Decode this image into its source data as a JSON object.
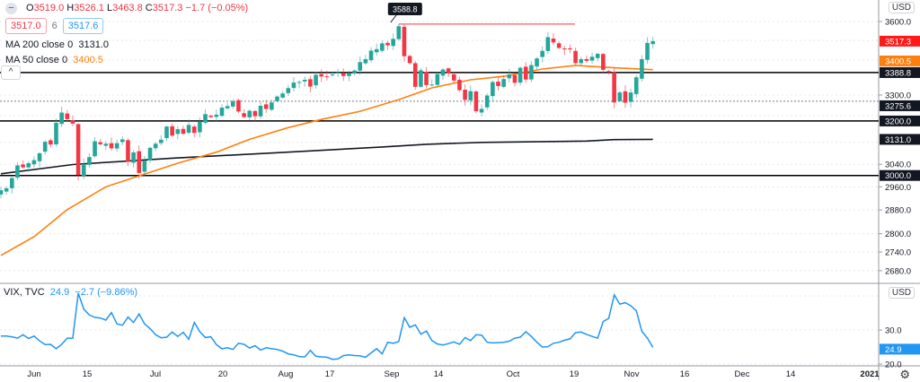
{
  "legend": {
    "ohlc": {
      "o_label": "O",
      "o": "3519.0",
      "h_label": "H",
      "h": "3526.1",
      "l_label": "L",
      "l": "3463.8",
      "c_label": "C",
      "c": "3517.3",
      "change": "−1.7 (−0.05%)"
    },
    "bid": "3517.0",
    "spread": "6",
    "ask": "3517.6",
    "ma200": {
      "label": "MA 200 close 0",
      "value": "3131.0"
    },
    "ma50": {
      "label": "MA 50 close 0",
      "value": "3400.5"
    },
    "collapse_icon": "chevron-up-icon"
  },
  "vix_legend": {
    "label": "VIX, TVC",
    "value": "24.9",
    "change": "−2.7 (−9.86%)"
  },
  "currency": "USD",
  "colors": {
    "up": "#26a69a",
    "down": "#f23645",
    "ma50": "#ff7f0e",
    "ma200": "#131722",
    "vix": "#2196f3",
    "last": "#ff1a1a",
    "level": "#000000"
  },
  "chart_data": [
    {
      "type": "candlestick",
      "scale": "log",
      "grid": true,
      "ylim": [
        2620,
        3640
      ],
      "y_ticks": [
        "3600.0",
        "3300.0",
        "3040.0",
        "2960.0",
        "2880.0",
        "2800.0",
        "2740.0",
        "2680.0"
      ],
      "x_ticks": [
        "Jun",
        "15",
        "Jul",
        "20",
        "Aug",
        "17",
        "Sep",
        "14",
        "Oct",
        "19",
        "Nov",
        "16",
        "Dec",
        "14",
        "2021"
      ],
      "high_marker": "3588.8",
      "last_price": "3517.3",
      "levels": [
        {
          "value": "3388.8",
          "style": "solid"
        },
        {
          "value": "3275.6",
          "style": "dotted"
        },
        {
          "value": "3200.0",
          "style": "solid"
        },
        {
          "value": "3000.0",
          "style": "solid"
        }
      ],
      "ma_tags": {
        "ma50": "3400.5",
        "ma200": "3131.0"
      },
      "dates": [
        "2020-05-21",
        "2020-05-22",
        "2020-05-26",
        "2020-05-27",
        "2020-05-28",
        "2020-05-29",
        "2020-06-01",
        "2020-06-02",
        "2020-06-03",
        "2020-06-04",
        "2020-06-05",
        "2020-06-08",
        "2020-06-09",
        "2020-06-10",
        "2020-06-11",
        "2020-06-12",
        "2020-06-15",
        "2020-06-16",
        "2020-06-17",
        "2020-06-18",
        "2020-06-19",
        "2020-06-22",
        "2020-06-23",
        "2020-06-24",
        "2020-06-25",
        "2020-06-26",
        "2020-06-29",
        "2020-06-30",
        "2020-07-01",
        "2020-07-02",
        "2020-07-06",
        "2020-07-07",
        "2020-07-08",
        "2020-07-09",
        "2020-07-10",
        "2020-07-13",
        "2020-07-14",
        "2020-07-15",
        "2020-07-16",
        "2020-07-17",
        "2020-07-20",
        "2020-07-21",
        "2020-07-22",
        "2020-07-23",
        "2020-07-24",
        "2020-07-27",
        "2020-07-28",
        "2020-07-29",
        "2020-07-30",
        "2020-07-31",
        "2020-08-03",
        "2020-08-04",
        "2020-08-05",
        "2020-08-06",
        "2020-08-07",
        "2020-08-10",
        "2020-08-11",
        "2020-08-12",
        "2020-08-13",
        "2020-08-14",
        "2020-08-17",
        "2020-08-18",
        "2020-08-19",
        "2020-08-20",
        "2020-08-21",
        "2020-08-24",
        "2020-08-25",
        "2020-08-26",
        "2020-08-27",
        "2020-08-28",
        "2020-08-31",
        "2020-09-01",
        "2020-09-02",
        "2020-09-03",
        "2020-09-04",
        "2020-09-08",
        "2020-09-09",
        "2020-09-10",
        "2020-09-11",
        "2020-09-14",
        "2020-09-15",
        "2020-09-16",
        "2020-09-17",
        "2020-09-18",
        "2020-09-21",
        "2020-09-22",
        "2020-09-23",
        "2020-09-24",
        "2020-09-25",
        "2020-09-28",
        "2020-09-29",
        "2020-09-30",
        "2020-10-01",
        "2020-10-02",
        "2020-10-05",
        "2020-10-06",
        "2020-10-07",
        "2020-10-08",
        "2020-10-09",
        "2020-10-12",
        "2020-10-13",
        "2020-10-14",
        "2020-10-15",
        "2020-10-16",
        "2020-10-19",
        "2020-10-20",
        "2020-10-21",
        "2020-10-22",
        "2020-10-23",
        "2020-10-26",
        "2020-10-27",
        "2020-10-28",
        "2020-10-29",
        "2020-10-30",
        "2020-11-02",
        "2020-11-03",
        "2020-11-04",
        "2020-11-05",
        "2020-11-06"
      ],
      "close": [
        2948,
        2955,
        2991,
        3036,
        3029,
        3044,
        3055,
        3080,
        3122,
        3112,
        3193,
        3232,
        3207,
        3190,
        3002,
        3041,
        3066,
        3124,
        3113,
        3115,
        3098,
        3117,
        3131,
        3050,
        3083,
        3009,
        3053,
        3100,
        3115,
        3130,
        3179,
        3145,
        3169,
        3152,
        3185,
        3155,
        3197,
        3226,
        3215,
        3224,
        3251,
        3257,
        3276,
        3236,
        3215,
        3239,
        3218,
        3258,
        3246,
        3271,
        3294,
        3306,
        3327,
        3349,
        3351,
        3360,
        3333,
        3380,
        3373,
        3373,
        3381,
        3389,
        3375,
        3385,
        3397,
        3431,
        3443,
        3478,
        3484,
        3508,
        3500,
        3527,
        3580,
        3455,
        3427,
        3332,
        3398,
        3339,
        3341,
        3383,
        3401,
        3385,
        3357,
        3319,
        3281,
        3315,
        3237,
        3246,
        3298,
        3351,
        3335,
        3363,
        3381,
        3348,
        3408,
        3361,
        3419,
        3446,
        3477,
        3534,
        3512,
        3489,
        3483,
        3483,
        3427,
        3443,
        3436,
        3453,
        3465,
        3400,
        3391,
        3271,
        3310,
        3270,
        3310,
        3370,
        3443,
        3510,
        3517.3
      ],
      "ma50": [
        [
          "2020-05-21",
          2729
        ],
        [
          "2020-06-01",
          2790
        ],
        [
          "2020-06-09",
          2881
        ],
        [
          "2020-06-18",
          2960
        ],
        [
          "2020-06-29",
          3005
        ],
        [
          "2020-07-08",
          3044
        ],
        [
          "2020-07-17",
          3084
        ],
        [
          "2020-07-27",
          3131
        ],
        [
          "2020-08-05",
          3175
        ],
        [
          "2020-08-13",
          3206
        ],
        [
          "2020-08-24",
          3237
        ],
        [
          "2020-09-02",
          3282
        ],
        [
          "2020-09-11",
          3328
        ],
        [
          "2020-09-22",
          3360
        ],
        [
          "2020-09-30",
          3374
        ],
        [
          "2020-10-09",
          3403
        ],
        [
          "2020-10-19",
          3418
        ],
        [
          "2020-10-28",
          3408
        ],
        [
          "2020-11-06",
          3400.5
        ]
      ],
      "ma200": [
        [
          "2020-05-21",
          3006
        ],
        [
          "2020-06-10",
          3039
        ],
        [
          "2020-07-07",
          3062
        ],
        [
          "2020-08-03",
          3082
        ],
        [
          "2020-08-28",
          3103
        ],
        [
          "2020-09-10",
          3113
        ],
        [
          "2020-09-24",
          3120
        ],
        [
          "2020-10-21",
          3125
        ],
        [
          "2020-10-28",
          3130
        ],
        [
          "2020-11-06",
          3131
        ]
      ]
    },
    {
      "type": "line",
      "series_name": "VIX, TVC",
      "ylim": [
        18,
        43
      ],
      "y_ticks": [
        "30.0",
        "20.0"
      ],
      "last_value": "24.9",
      "values": [
        28.2,
        28.2,
        28.0,
        27.6,
        28.6,
        27.5,
        28.2,
        26.8,
        25.7,
        25.8,
        24.5,
        25.8,
        27.6,
        27.6,
        40.8,
        36.1,
        34.4,
        33.7,
        33.5,
        32.9,
        35.1,
        31.8,
        31.4,
        33.8,
        32.2,
        34.7,
        31.8,
        30.4,
        28.6,
        27.7,
        27.9,
        29.4,
        28.1,
        29.3,
        27.3,
        32.2,
        29.5,
        27.8,
        28.0,
        25.7,
        24.5,
        24.8,
        24.3,
        26.1,
        25.8,
        24.7,
        25.4,
        24.1,
        24.8,
        24.5,
        24.3,
        23.8,
        23.0,
        22.7,
        22.2,
        22.1,
        24.0,
        22.3,
        22.1,
        22.0,
        21.4,
        21.5,
        22.5,
        22.7,
        22.5,
        22.4,
        22.0,
        23.3,
        24.5,
        23.0,
        26.4,
        26.1,
        26.6,
        33.6,
        30.8,
        31.5,
        28.8,
        29.7,
        26.9,
        25.9,
        25.6,
        26.0,
        26.5,
        25.8,
        27.8,
        26.9,
        28.6,
        28.5,
        26.4,
        26.2,
        26.3,
        26.4,
        26.7,
        27.6,
        27.9,
        29.5,
        28.1,
        26.4,
        25.0,
        25.1,
        26.1,
        26.4,
        27.0,
        27.4,
        29.2,
        29.4,
        28.7,
        28.1,
        27.6,
        32.5,
        33.4,
        40.3,
        37.6,
        38.0,
        37.1,
        35.6,
        29.6,
        27.6,
        24.9
      ]
    }
  ]
}
